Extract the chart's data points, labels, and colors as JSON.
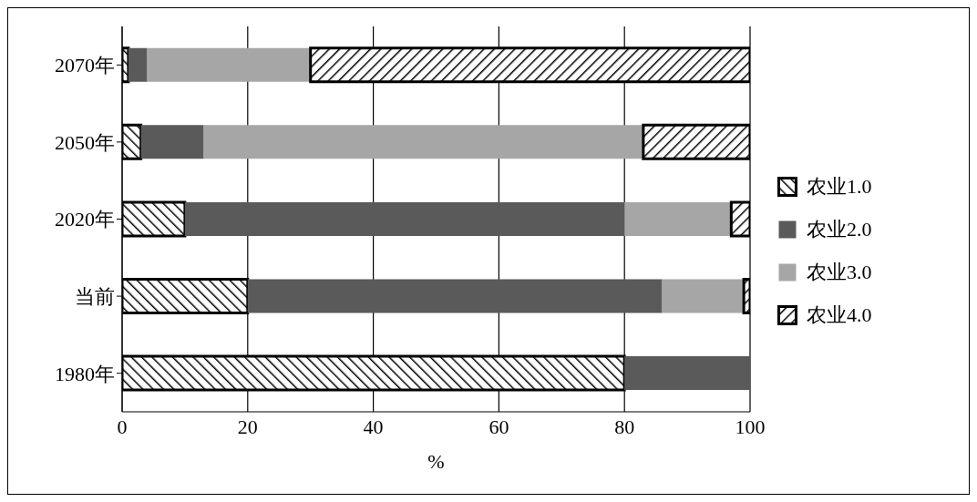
{
  "chart_data": {
    "type": "bar",
    "orientation": "horizontal",
    "stacked": true,
    "categories": [
      "2070年",
      "2050年",
      "2020年",
      "当前",
      "1980年"
    ],
    "series": [
      {
        "name": "农业1.0",
        "color": "#000000",
        "values": [
          1,
          3,
          10,
          20,
          80
        ]
      },
      {
        "name": "农业2.0",
        "color": "#5a5a5a",
        "values": [
          3,
          10,
          70,
          66,
          20
        ]
      },
      {
        "name": "农业3.0",
        "color": "#a6a6a6",
        "values": [
          26,
          70,
          17,
          13,
          0
        ]
      },
      {
        "name": "农业4.0",
        "color": "#000000",
        "values": [
          70,
          17,
          3,
          1,
          0
        ]
      }
    ],
    "xlim": [
      0,
      100
    ],
    "xticks": [
      0,
      20,
      40,
      60,
      80,
      100
    ],
    "xlabel": "%",
    "grid": "x",
    "legend": "right"
  }
}
